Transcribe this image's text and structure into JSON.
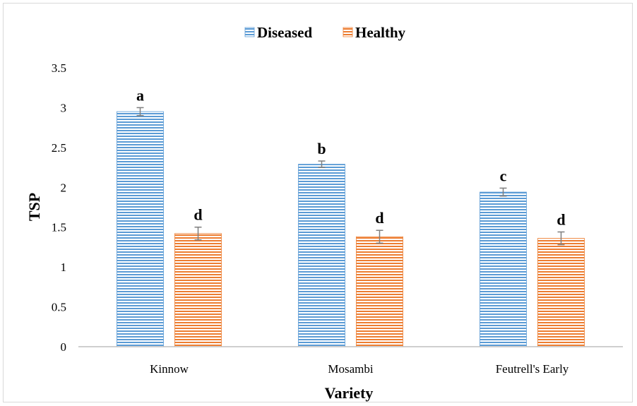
{
  "chart_data": {
    "type": "bar",
    "categories": [
      "Kinnow",
      "Mosambi",
      "Feutrell's Early"
    ],
    "series": [
      {
        "name": "Diseased",
        "values": [
          2.95,
          2.29,
          1.94
        ],
        "errors": [
          0.05,
          0.04,
          0.05
        ],
        "labels": [
          "a",
          "b",
          "c"
        ],
        "color": "#5b9bd5"
      },
      {
        "name": "Healthy",
        "values": [
          1.42,
          1.38,
          1.36
        ],
        "errors": [
          0.08,
          0.08,
          0.08
        ],
        "labels": [
          "d",
          "d",
          "d"
        ],
        "color": "#ed7d31"
      }
    ],
    "xlabel": "Variety",
    "ylabel": "TSP",
    "ylim": [
      0,
      3.5
    ],
    "yticks": [
      "0",
      "0.5",
      "1",
      "1.5",
      "2",
      "2.5",
      "3",
      "3.5"
    ],
    "grid": false,
    "legend_position": "top"
  }
}
